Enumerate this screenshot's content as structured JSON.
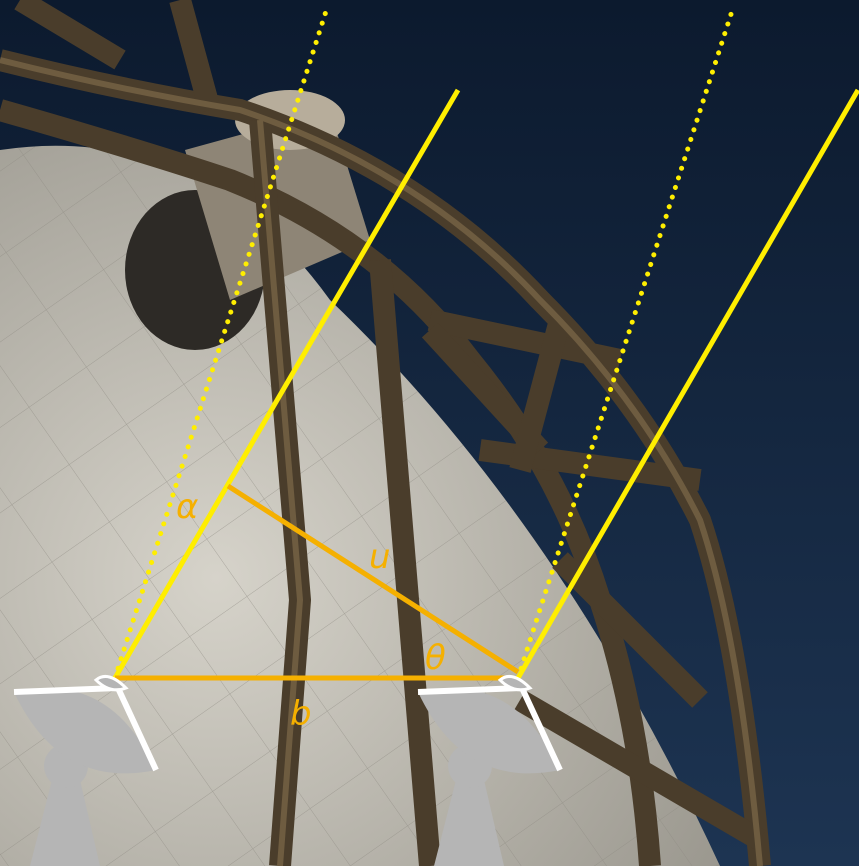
{
  "colors": {
    "sky_top": "#0c1a2e",
    "sky_bottom": "#1d3452",
    "dish_surface": "#c9c6bd",
    "truss": "#4a3d2b",
    "ray_yellow": "#ffee00",
    "geometry_orange": "#f5b000",
    "antenna_gray": "#b5b5b5",
    "antenna_outline": "#ffffff"
  },
  "labels": {
    "alpha": "α",
    "u": "u",
    "theta": "θ",
    "b": "b"
  },
  "icons": {
    "left_antenna": "radio-dish-icon",
    "right_antenna": "radio-dish-icon"
  }
}
